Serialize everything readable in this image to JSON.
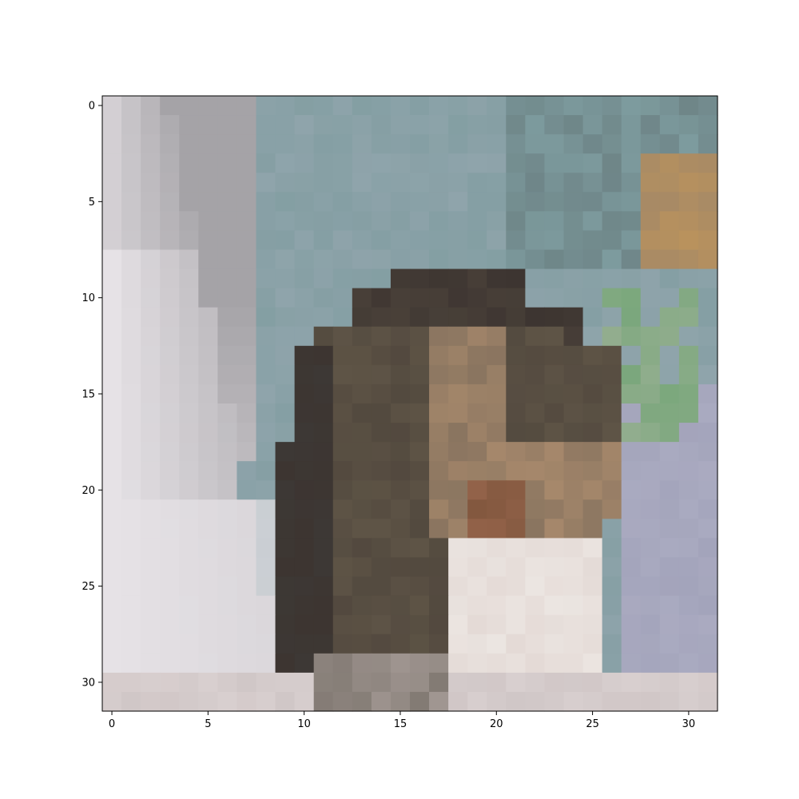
{
  "figure": {
    "kind": "pixelated-image-plot",
    "grid_size": [
      32,
      32
    ],
    "x_ticks": [
      "0",
      "5",
      "10",
      "15",
      "20",
      "25",
      "30"
    ],
    "y_ticks": [
      "0",
      "5",
      "10",
      "15",
      "20",
      "25",
      "30"
    ],
    "x_tick_values": [
      0,
      5,
      10,
      15,
      20,
      25,
      30
    ],
    "y_tick_values": [
      0,
      5,
      10,
      15,
      20,
      25,
      30
    ],
    "colors": {
      "left_light": "#e6e2e6",
      "left_mid": "#a5a3a7",
      "sky_gray_blue": "#8fa4ab",
      "teal": "#7d9b9e",
      "dark_cat_head": "#3d3531",
      "brown_body": "#5e5446",
      "light_brown": "#8a7560",
      "tan": "#b29070",
      "white_paws": "#e4dad6",
      "lavender": "#a3a4bb",
      "green_accent": "#7aa77c",
      "orange_accent": "#b9925d",
      "bottom_light": "#d8cfcf"
    }
  }
}
